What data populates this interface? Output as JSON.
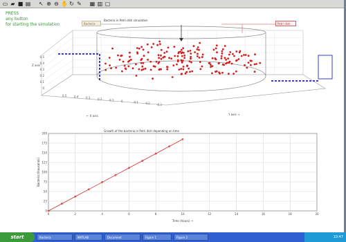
{
  "toolbar": {
    "buttons": [
      {
        "name": "new-file-icon",
        "glyph": "▭"
      },
      {
        "name": "open-file-icon",
        "glyph": "▰"
      },
      {
        "name": "save-icon",
        "glyph": "■"
      },
      {
        "name": "print-icon",
        "glyph": "▤"
      },
      {
        "name": "select-arrow-icon",
        "glyph": "↖"
      },
      {
        "name": "zoom-in-icon",
        "glyph": "⊕"
      },
      {
        "name": "zoom-out-icon",
        "glyph": "⊖"
      },
      {
        "name": "pan-icon",
        "glyph": "✋"
      },
      {
        "name": "rotate-icon",
        "glyph": "↻"
      },
      {
        "name": "data-cursor-icon",
        "glyph": "✎"
      },
      {
        "name": "legend-icon",
        "glyph": "▦"
      },
      {
        "name": "colorbar-icon",
        "glyph": "▥"
      },
      {
        "name": "hide-tools-icon",
        "glyph": "▢"
      }
    ]
  },
  "press_text": [
    "PRESS",
    "any button",
    "for starting the simulation"
  ],
  "scatter": {
    "title": "Bacteria in Petri dish simulation",
    "beige_note": "Bacteria",
    "red_note": "Petri dish",
    "zlabel": "Z axis",
    "xlabel": "← X axis",
    "ylabel": "Y axis →",
    "ticks_left": [
      "0.5",
      "0.4",
      "0.3",
      "0.2",
      "0.1",
      "0"
    ],
    "ticks_front": [
      "0.5",
      "0.4",
      "0.3",
      "0.2",
      "0.1",
      "0",
      "-0.1",
      "-0.2",
      "-0.3"
    ]
  },
  "chart_data": {
    "type": "line",
    "title": "Growth of the bacteria in Petri dish depending on time",
    "xlabel": "Time (hours) →",
    "ylabel": "Bacteria (thousands)",
    "xlim": [
      0,
      20
    ],
    "ylim": [
      0,
      200
    ],
    "xticks": [
      0,
      2,
      4,
      6,
      8,
      10,
      12,
      14,
      16,
      18,
      20
    ],
    "yticks": [
      0,
      25,
      50,
      75,
      100,
      125,
      150,
      175,
      200
    ],
    "x": [
      0,
      1,
      2,
      3,
      4,
      5,
      6,
      7,
      8,
      9,
      10
    ],
    "y": [
      0,
      18.5,
      37,
      55.5,
      74,
      92.5,
      111,
      129.5,
      148,
      166.5,
      185
    ],
    "grid": true,
    "color": "#d03030"
  },
  "taskbar": {
    "start": "start",
    "tasks": [
      "Bacteria",
      "MATLAB",
      "Document",
      "Figure 1",
      "Figure 2"
    ],
    "tray": "10:47"
  }
}
